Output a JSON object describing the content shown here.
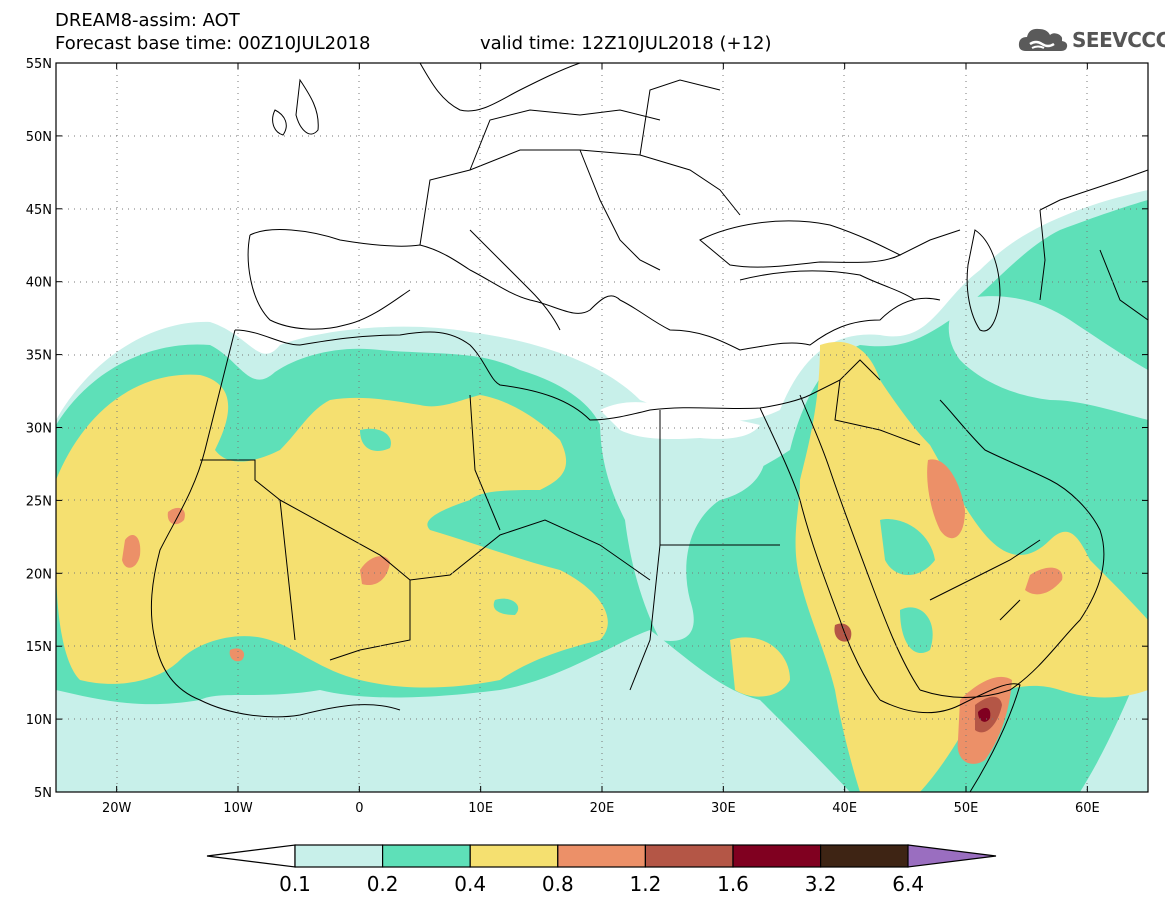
{
  "header": {
    "line1": "DREAM8-assim: AOT",
    "line2": "Forecast base time: 00Z10JUL2018",
    "valid": "valid time: 12Z10JUL2018 (+12)",
    "logo_text": "SEEVCCC"
  },
  "map": {
    "projection": "lat-lon",
    "lon_range": [
      -25,
      65
    ],
    "lat_range": [
      5,
      55
    ],
    "lat_ticks": [
      {
        "value": 55,
        "label": "55N"
      },
      {
        "value": 50,
        "label": "50N"
      },
      {
        "value": 45,
        "label": "45N"
      },
      {
        "value": 40,
        "label": "40N"
      },
      {
        "value": 35,
        "label": "35N"
      },
      {
        "value": 30,
        "label": "30N"
      },
      {
        "value": 25,
        "label": "25N"
      },
      {
        "value": 20,
        "label": "20N"
      },
      {
        "value": 15,
        "label": "15N"
      },
      {
        "value": 10,
        "label": "10N"
      },
      {
        "value": 5,
        "label": "5N"
      }
    ],
    "lon_ticks": [
      {
        "value": -20,
        "label": "20W"
      },
      {
        "value": -10,
        "label": "10W"
      },
      {
        "value": 0,
        "label": "0"
      },
      {
        "value": 10,
        "label": "10E"
      },
      {
        "value": 20,
        "label": "20E"
      },
      {
        "value": 30,
        "label": "30E"
      },
      {
        "value": 40,
        "label": "40E"
      },
      {
        "value": 50,
        "label": "50E"
      },
      {
        "value": 60,
        "label": "60E"
      }
    ],
    "grid": "dotted"
  },
  "colorbar": {
    "levels": [
      "0.1",
      "0.2",
      "0.4",
      "0.8",
      "1.2",
      "1.6",
      "3.2",
      "6.4"
    ],
    "colors": [
      "#c8f0ea",
      "#5ee0b8",
      "#f5e070",
      "#ec9068",
      "#b45646",
      "#800020",
      "#3e2414",
      "#9a6ec0"
    ],
    "under_color": "#ffffff"
  },
  "colors": {
    "level1": "#c8f0ea",
    "level2": "#5ee0b8",
    "level3": "#f5e070",
    "level4": "#ec9068",
    "level5": "#b45646",
    "level6": "#800020"
  }
}
